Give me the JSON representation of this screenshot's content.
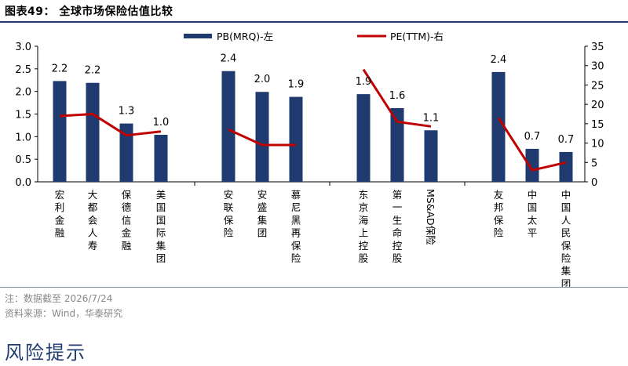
{
  "figure_title": "图表49：  全球市场保险估值比较",
  "note": "注：数据截至 2026/7/24",
  "source": "资料来源：Wind，华泰研究",
  "section_heading": "风险提示",
  "colors": {
    "bar": "#1f3a6e",
    "line": "#c00000",
    "axis": "#000000",
    "rule": "#1f3a6e"
  },
  "chart_data": {
    "type": "bar",
    "categories": [
      "宏利金融",
      "大都会人寿",
      "保德信金融",
      "美国国际集团",
      "安联保险",
      "安盛集团",
      "慕尼黑再保险",
      "东京海上控股",
      "第一生命控股",
      "MS&AD保险",
      "友邦保险",
      "中国太平",
      "中国人民保险集团"
    ],
    "groups": [
      [
        0,
        1,
        2,
        3
      ],
      [
        4,
        5,
        6
      ],
      [
        7,
        8,
        9
      ],
      [
        10,
        11,
        12
      ]
    ],
    "series": [
      {
        "name": "PB(MRQ)-左",
        "type": "bar",
        "axis": "left",
        "values": [
          2.2,
          2.2,
          1.3,
          1.0,
          2.4,
          2.0,
          1.9,
          1.9,
          1.6,
          1.1,
          2.4,
          0.7,
          0.7
        ],
        "exact": [
          2.23,
          2.19,
          1.29,
          1.04,
          2.45,
          1.99,
          1.88,
          1.94,
          1.63,
          1.14,
          2.43,
          0.73,
          0.66
        ],
        "labels": [
          "2.2",
          "2.2",
          "1.3",
          "1.0",
          "2.4",
          "2.0",
          "1.9",
          "1.9",
          "1.6",
          "1.1",
          "2.4",
          "0.7",
          "0.7"
        ]
      },
      {
        "name": "PE(TTM)-右",
        "type": "line",
        "axis": "right",
        "values": [
          17.0,
          17.5,
          12.0,
          13.0,
          13.5,
          9.5,
          9.5,
          29.0,
          15.5,
          14.3,
          16.5,
          3.0,
          5.0
        ]
      }
    ],
    "y_left": {
      "min": 0,
      "max": 3.0,
      "ticks": [
        "0.0",
        "0.5",
        "1.0",
        "1.5",
        "2.0",
        "2.5",
        "3.0"
      ]
    },
    "y_right": {
      "min": 0,
      "max": 35,
      "ticks": [
        "0",
        "5",
        "10",
        "15",
        "20",
        "25",
        "30",
        "35"
      ]
    },
    "legend_position": "top",
    "grid": false
  }
}
